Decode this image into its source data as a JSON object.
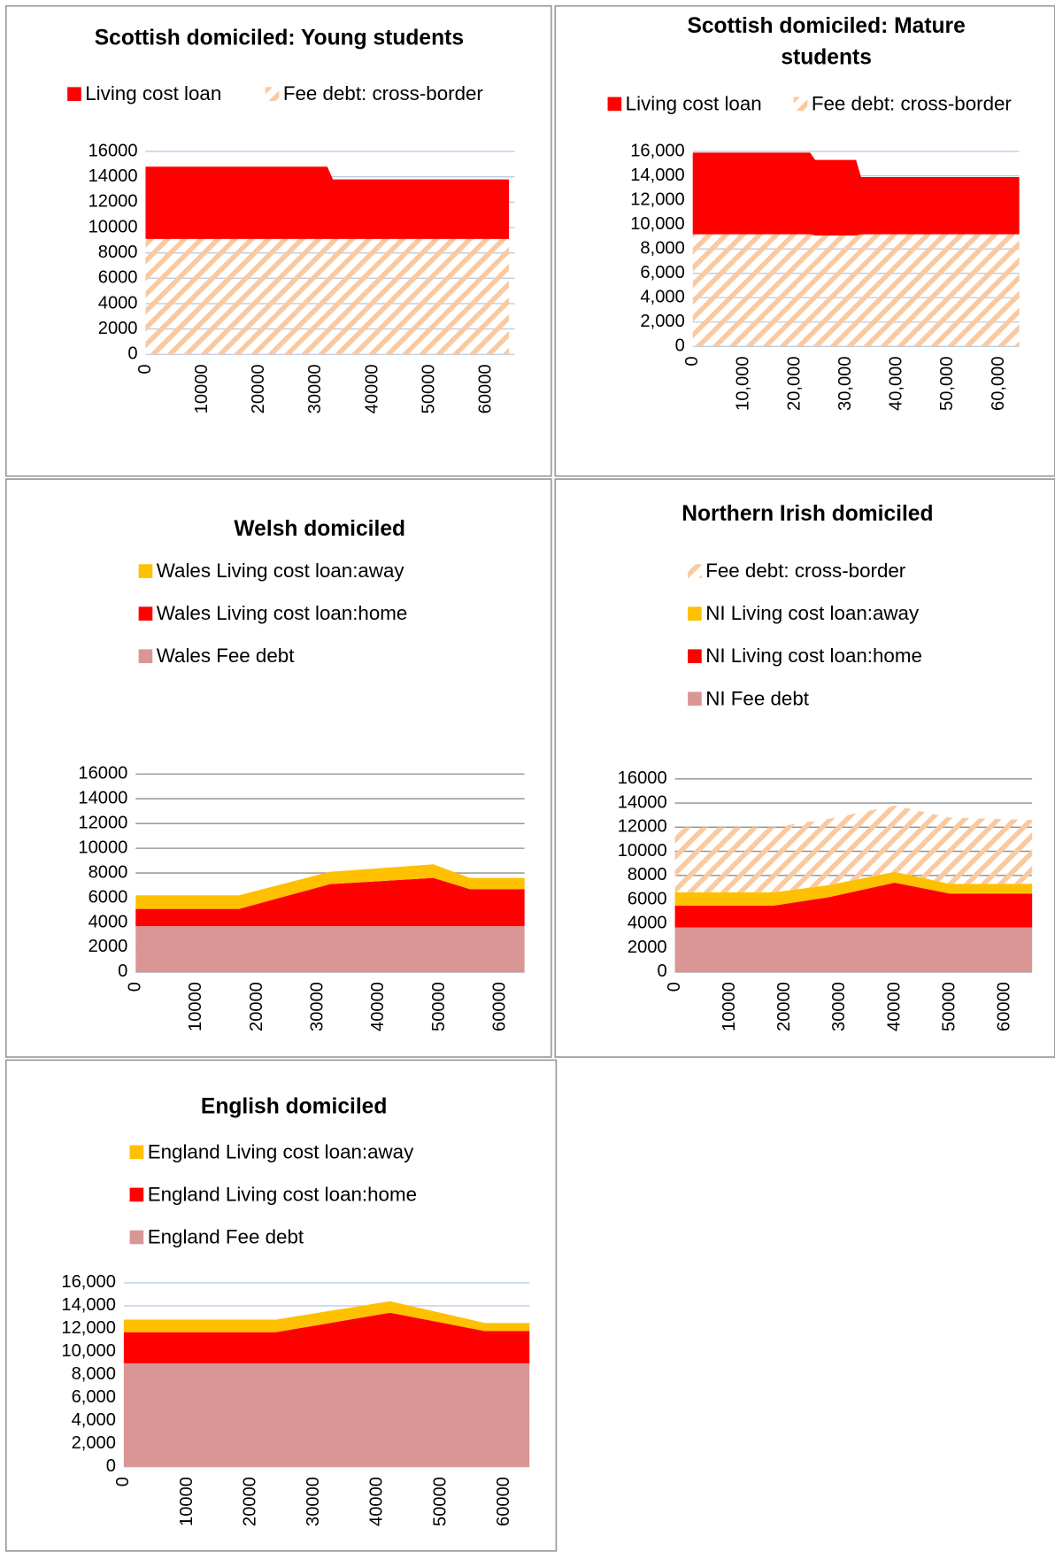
{
  "chart_data": [
    {
      "type": "area",
      "stacked": true,
      "title": "Scottish domiciled: Young students",
      "x": [
        0,
        32000,
        33000,
        64000
      ],
      "series": [
        {
          "name": "Living cost loan",
          "color": "#ff0000",
          "values": [
            5700,
            5700,
            4700,
            4700
          ]
        },
        {
          "name": "Fee debt: cross-border",
          "color": "#fbc99f",
          "hatch": true,
          "values": [
            9100,
            9100,
            9100,
            9100
          ]
        }
      ],
      "xlim": [
        0,
        65000
      ],
      "xticks": [
        0,
        10000,
        20000,
        30000,
        40000,
        50000,
        60000
      ],
      "ylim": [
        0,
        16000
      ],
      "yticks": [
        0,
        2000,
        4000,
        6000,
        8000,
        10000,
        12000,
        14000,
        16000
      ],
      "grid": true
    },
    {
      "type": "area",
      "stacked": true,
      "title": "Scottish domiciled: Mature students",
      "x": [
        0,
        23000,
        24000,
        32000,
        33000,
        64000
      ],
      "series": [
        {
          "name": "Living cost loan",
          "color": "#ff0000",
          "values": [
            6700,
            6700,
            6200,
            6200,
            4700,
            4700
          ]
        },
        {
          "name": "Fee debt: cross-border",
          "color": "#fbc99f",
          "hatch": true,
          "values": [
            9200,
            9200,
            9100,
            9100,
            9200,
            9200
          ]
        }
      ],
      "xlim": [
        0,
        64000
      ],
      "xticks": [
        0,
        {
          "value": 10000,
          "label": "10,000"
        },
        {
          "value": 20000,
          "label": "20,000"
        },
        {
          "value": 30000,
          "label": "30,000"
        },
        {
          "value": 40000,
          "label": "40,000"
        },
        {
          "value": 50000,
          "label": "50,000"
        },
        {
          "value": 60000,
          "label": "60,000"
        }
      ],
      "ylim": [
        0,
        16000
      ],
      "yticks": [
        0,
        {
          "value": 2000,
          "label": "2,000"
        },
        {
          "value": 4000,
          "label": "4,000"
        },
        {
          "value": 6000,
          "label": "6,000"
        },
        {
          "value": 8000,
          "label": "8,000"
        },
        {
          "value": 10000,
          "label": "10,000"
        },
        {
          "value": 12000,
          "label": "12,000"
        },
        {
          "value": 14000,
          "label": "14,000"
        },
        {
          "value": 16000,
          "label": "16,000"
        }
      ],
      "grid": true
    },
    {
      "type": "area",
      "stacked": true,
      "title": "Welsh domiciled",
      "x": [
        0,
        17000,
        32000,
        49000,
        55000,
        64000
      ],
      "series": [
        {
          "name": "Wales Living cost loan:away",
          "color": "#ffc000",
          "values": [
            1100,
            1100,
            1000,
            1100,
            900,
            900
          ]
        },
        {
          "name": "Wales Living cost loan:home",
          "color": "#ff0000",
          "values": [
            1400,
            1400,
            3400,
            3900,
            3000,
            3000
          ]
        },
        {
          "name": "Wales Fee debt",
          "color": "#da9694",
          "values": [
            3700,
            3700,
            3700,
            3700,
            3700,
            3700
          ]
        }
      ],
      "xlim": [
        0,
        64000
      ],
      "xticks": [
        0,
        10000,
        20000,
        30000,
        40000,
        50000,
        60000
      ],
      "ylim": [
        0,
        16000
      ],
      "yticks": [
        0,
        2000,
        4000,
        6000,
        8000,
        10000,
        12000,
        14000,
        16000
      ],
      "grid": true
    },
    {
      "type": "area",
      "stacked": true,
      "title": "Northern Irish domiciled",
      "x": [
        0,
        18000,
        28000,
        40000,
        50000,
        65000
      ],
      "series": [
        {
          "name": "Fee debt: cross-border",
          "color": "#fbc99f",
          "hatch": true,
          "values": [
            5400,
            5400,
            5500,
            5500,
            5500,
            5300
          ]
        },
        {
          "name": "NI Living cost loan:away",
          "color": "#ffc000",
          "values": [
            1100,
            1100,
            1000,
            900,
            800,
            800
          ]
        },
        {
          "name": "NI Living cost loan:home",
          "color": "#ff0000",
          "values": [
            1800,
            1800,
            2500,
            3700,
            2800,
            2800
          ]
        },
        {
          "name": "NI Fee debt",
          "color": "#da9694",
          "values": [
            3700,
            3700,
            3700,
            3700,
            3700,
            3700
          ]
        }
      ],
      "xlim": [
        0,
        65000
      ],
      "xticks": [
        0,
        10000,
        20000,
        30000,
        40000,
        50000,
        60000
      ],
      "ylim": [
        0,
        16000
      ],
      "yticks": [
        0,
        2000,
        4000,
        6000,
        8000,
        10000,
        12000,
        14000,
        16000
      ],
      "grid": true
    },
    {
      "type": "area",
      "stacked": true,
      "title": "English domiciled",
      "x": [
        0,
        24000,
        42000,
        57000,
        64000
      ],
      "series": [
        {
          "name": "England  Living cost loan:away",
          "color": "#ffc000",
          "values": [
            1100,
            1100,
            1000,
            700,
            700
          ]
        },
        {
          "name": "England  Living cost loan:home",
          "color": "#ff0000",
          "values": [
            2700,
            2700,
            4400,
            2800,
            2800
          ]
        },
        {
          "name": "England  Fee debt",
          "color": "#da9694",
          "values": [
            9000,
            9000,
            9000,
            9000,
            9000
          ]
        }
      ],
      "xlim": [
        0,
        64000
      ],
      "xticks": [
        0,
        10000,
        20000,
        30000,
        40000,
        50000,
        60000
      ],
      "ylim": [
        0,
        16000
      ],
      "yticks": [
        0,
        {
          "value": 2000,
          "label": "2,000"
        },
        {
          "value": 4000,
          "label": "4,000"
        },
        {
          "value": 6000,
          "label": "6,000"
        },
        {
          "value": 8000,
          "label": "8,000"
        },
        {
          "value": 10000,
          "label": "10,000"
        },
        {
          "value": 12000,
          "label": "12,000"
        },
        {
          "value": 14000,
          "label": "14,000"
        },
        {
          "value": 16000,
          "label": "16,000"
        }
      ],
      "grid": true
    }
  ]
}
